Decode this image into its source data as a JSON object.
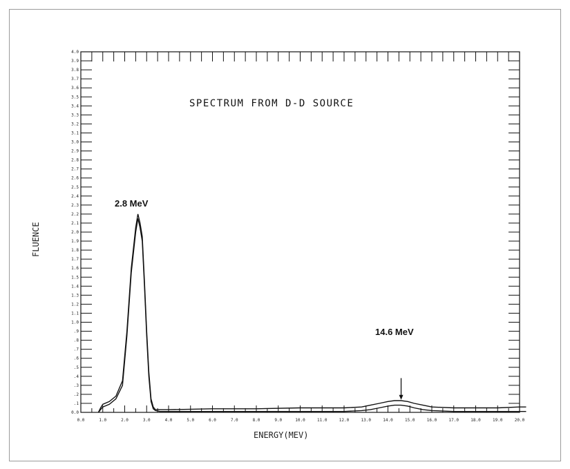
{
  "chart_data": {
    "type": "line",
    "title": "SPECTRUM FROM D-D SOURCE",
    "xlabel": "ENERGY(MEV)",
    "ylabel": "FLUENCE",
    "xlim": [
      0,
      20
    ],
    "ylim": [
      0,
      4.0
    ],
    "x_ticks": [
      "0.0",
      "1.0",
      "2.0",
      "3.0",
      "4.0",
      "5.0",
      "6.0",
      "7.0",
      "8.0",
      "9.0",
      "10.0",
      "11.0",
      "12.0",
      "13.0",
      "14.0",
      "15.0",
      "16.0",
      "17.0",
      "18.0",
      "19.0",
      "20.0"
    ],
    "y_ticks": [
      "0.0",
      ".1",
      ".2",
      ".3",
      ".4",
      ".5",
      ".6",
      ".7",
      ".8",
      ".9",
      "1.0",
      "1.1",
      "1.2",
      "1.3",
      "1.4",
      "1.5",
      "1.6",
      "1.7",
      "1.8",
      "1.9",
      "2.0",
      "2.1",
      "2.2",
      "2.3",
      "2.4",
      "2.5",
      "2.6",
      "2.7",
      "2.8",
      "2.9",
      "3.0",
      "3.1",
      "3.2",
      "3.3",
      "3.4",
      "3.5",
      "3.6",
      "3.7",
      "3.8",
      "3.9",
      "4.0"
    ],
    "grid": false,
    "series": [
      {
        "x": [
          0.8,
          0.9,
          1.0,
          1.3,
          1.6,
          1.9,
          2.1,
          2.3,
          2.5,
          2.6,
          2.7,
          2.8,
          2.9,
          3.0,
          3.1,
          3.2,
          3.3,
          3.4,
          3.6,
          4.0,
          6.0,
          8.0,
          10.0,
          11.0,
          12.0,
          12.8,
          13.2,
          13.6,
          14.0,
          14.3,
          14.6,
          14.9,
          15.2,
          15.6,
          16.0,
          17.0,
          18.0,
          19.0,
          20.0,
          20.3
        ],
        "y": [
          0.0,
          0.05,
          0.09,
          0.12,
          0.18,
          0.35,
          0.9,
          1.6,
          2.05,
          2.2,
          2.1,
          1.95,
          1.45,
          0.9,
          0.45,
          0.15,
          0.06,
          0.03,
          0.03,
          0.03,
          0.04,
          0.04,
          0.05,
          0.05,
          0.05,
          0.06,
          0.08,
          0.1,
          0.12,
          0.13,
          0.13,
          0.12,
          0.1,
          0.08,
          0.06,
          0.05,
          0.05,
          0.05,
          0.06,
          0.06
        ]
      },
      {
        "x": [
          0.8,
          0.9,
          1.0,
          1.3,
          1.6,
          1.9,
          2.1,
          2.3,
          2.5,
          2.6,
          2.7,
          2.8,
          2.9,
          3.0,
          3.1,
          3.2,
          3.3,
          3.4,
          3.6,
          4.0,
          6.0,
          8.0,
          10.0,
          11.0,
          12.0,
          12.8,
          13.2,
          13.6,
          14.0,
          14.3,
          14.6,
          14.9,
          15.2,
          15.6,
          16.0,
          17.0,
          18.0,
          19.0,
          20.0,
          20.3
        ],
        "y": [
          0.0,
          0.03,
          0.06,
          0.09,
          0.15,
          0.3,
          0.85,
          1.55,
          2.0,
          2.15,
          2.05,
          1.9,
          1.4,
          0.85,
          0.4,
          0.12,
          0.04,
          0.02,
          0.01,
          0.01,
          0.01,
          0.01,
          0.01,
          0.01,
          0.01,
          0.02,
          0.03,
          0.05,
          0.07,
          0.08,
          0.08,
          0.07,
          0.05,
          0.03,
          0.02,
          0.01,
          0.01,
          0.01,
          0.01,
          0.01
        ]
      }
    ],
    "annotations": [
      {
        "text": "2.8 MeV",
        "x": 2.6,
        "y": 2.3
      },
      {
        "text": "14.6 MeV",
        "x": 14.6,
        "y": 0.38,
        "arrow_to_y": 0.14
      }
    ]
  },
  "colors": {
    "line": "#111111",
    "axis": "#111111",
    "frame": "#9a9a9a"
  }
}
